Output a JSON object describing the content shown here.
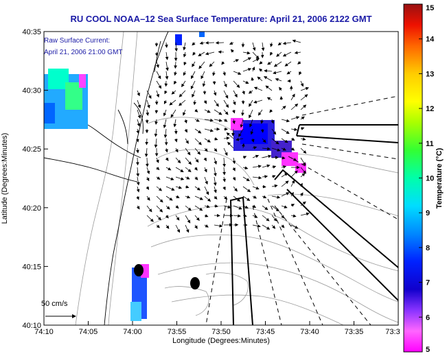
{
  "chart_data": {
    "type": "map",
    "title": "RU COOL  NOAA–12  Sea Surface Temperature:  April 21, 2006 2122 GMT",
    "xlabel": "Longitude (Degrees:Minutes)",
    "ylabel": "Latitude (Degrees:Minutes)",
    "x_ticks": [
      "74:10",
      "74:05",
      "74:00",
      "73:55",
      "73:50",
      "73:45",
      "73:40",
      "73:35",
      "73:3"
    ],
    "y_ticks": [
      "40:10",
      "40:15",
      "40:20",
      "40:25",
      "40:30",
      "40:35"
    ],
    "x_range_min": [
      -10,
      30
    ],
    "y_range_min": [
      10,
      35
    ],
    "annotation_lines": [
      "Raw Surface Current:",
      "April 21, 2006 21:00 GMT"
    ],
    "scale_label": "50 cm/s",
    "colorbar": {
      "label": "Temperature (°C)",
      "min": 5,
      "max": 15,
      "ticks": [
        "5",
        "6",
        "7",
        "8",
        "9",
        "10",
        "11",
        "12",
        "13",
        "14",
        "15"
      ],
      "colors": [
        "#ff00ff",
        "#ff55ff",
        "#aa66ff",
        "#2200cc",
        "#0000ff",
        "#0077ff",
        "#00ccff",
        "#00ffcc",
        "#00ff66",
        "#55ff00",
        "#ccff00",
        "#ffff00",
        "#ffcc00",
        "#ff8800",
        "#ff3300",
        "#cc0000",
        "#990000"
      ]
    },
    "grid": false
  }
}
